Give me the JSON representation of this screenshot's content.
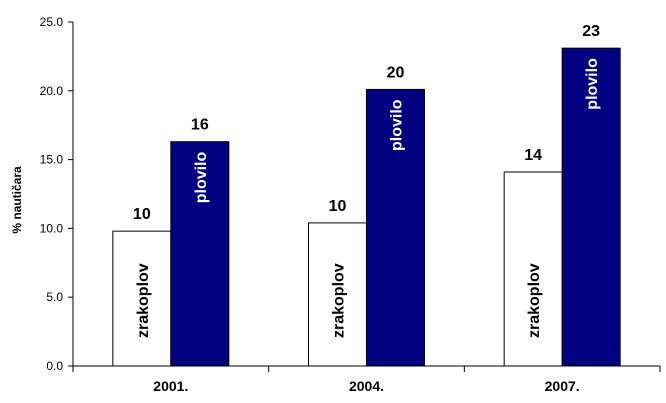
{
  "chart_data": {
    "type": "bar",
    "title": "",
    "xlabel": "",
    "ylabel": "% nautičara",
    "ylim": [
      0,
      25
    ],
    "yticks": [
      "0.0",
      "5.0",
      "10.0",
      "15.0",
      "20.0",
      "25.0"
    ],
    "grid": false,
    "categories": [
      "2001.",
      "2004.",
      "2007."
    ],
    "series": [
      {
        "inbar_label": "zrakoplov",
        "values": [
          9.8,
          10.4,
          14.1
        ],
        "data_labels": [
          "10",
          "10",
          "14"
        ],
        "color": "#ffffff",
        "border": "#000000",
        "label_color": "#000000"
      },
      {
        "inbar_label": "plovilo",
        "values": [
          16.3,
          20.1,
          23.1
        ],
        "data_labels": [
          "16",
          "20",
          "23"
        ],
        "color": "#000080",
        "border": "#000000",
        "label_color": "#ffffff"
      }
    ]
  }
}
